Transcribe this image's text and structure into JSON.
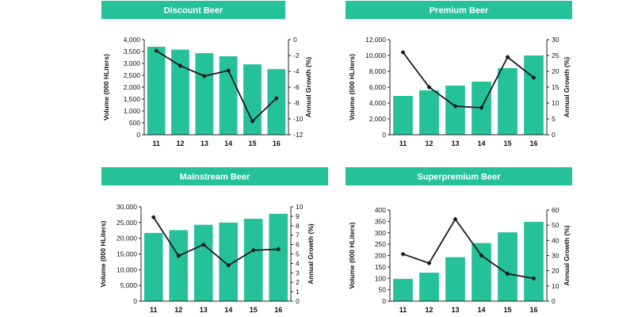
{
  "colors": {
    "bar": "#25c29a",
    "header_bg": "#25c29a",
    "header_text": "#ffffff",
    "line": "#1a1a1a",
    "axis": "#222222",
    "text": "#111111"
  },
  "chart_data": [
    {
      "type": "bar",
      "title": "Discount Beer",
      "categories": [
        "11",
        "12",
        "13",
        "14",
        "15",
        "16"
      ],
      "series": [
        {
          "name": "Volume (000 HLiters)",
          "type": "bar",
          "axis": "left",
          "values": [
            3700,
            3580,
            3430,
            3300,
            2960,
            2760
          ]
        },
        {
          "name": "Annual Growth (%)",
          "type": "line",
          "axis": "right",
          "values": [
            -1.4,
            -3.3,
            -4.6,
            -3.9,
            -10.3,
            -7.4
          ]
        }
      ],
      "ylabel": "Volume (000 HLiters)",
      "y2label": "Annual Growth (%)",
      "ylim": [
        0,
        4000
      ],
      "yticks": [
        0,
        500,
        1000,
        1500,
        2000,
        2500,
        3000,
        3500,
        4000
      ],
      "yticklabels": [
        "0",
        "500",
        "1,000",
        "1,500",
        "2,000",
        "2,500",
        "3,000",
        "3,500",
        "4,000"
      ],
      "y2lim": [
        -12,
        0
      ],
      "y2ticks": [
        0,
        -2,
        -4,
        -6,
        -8,
        -10,
        -12
      ],
      "y2ticklabels": [
        "0",
        "-2",
        "-4",
        "-6",
        "-8",
        "-10",
        "-12"
      ]
    },
    {
      "type": "bar",
      "title": "Premium Beer",
      "categories": [
        "11",
        "12",
        "13",
        "14",
        "15",
        "16"
      ],
      "series": [
        {
          "name": "Volume (000 HLiters)",
          "type": "bar",
          "axis": "left",
          "values": [
            4900,
            5600,
            6200,
            6700,
            8400,
            10000
          ]
        },
        {
          "name": "Annual Growth (%)",
          "type": "line",
          "axis": "right",
          "values": [
            26,
            15,
            9,
            8.5,
            24.5,
            18
          ]
        }
      ],
      "ylabel": "Volume (000 HLiters)",
      "y2label": "Annual Growth (%)",
      "ylim": [
        0,
        12000
      ],
      "yticks": [
        0,
        2000,
        4000,
        6000,
        8000,
        10000,
        12000
      ],
      "yticklabels": [
        "0",
        "2,000",
        "4,000",
        "6,000",
        "8,000",
        "10,000",
        "12,000"
      ],
      "y2lim": [
        0,
        30
      ],
      "y2ticks": [
        0,
        5,
        10,
        15,
        20,
        25,
        30
      ],
      "y2ticklabels": [
        "0",
        "5",
        "10",
        "15",
        "20",
        "25",
        "30"
      ]
    },
    {
      "type": "bar",
      "title": "Mainstream Beer",
      "categories": [
        "11",
        "12",
        "13",
        "14",
        "15",
        "16"
      ],
      "series": [
        {
          "name": "Volume (000 HLiters)",
          "type": "bar",
          "axis": "left",
          "values": [
            21700,
            22600,
            24300,
            25000,
            26200,
            27800
          ]
        },
        {
          "name": "Annual Growth (%)",
          "type": "line",
          "axis": "right",
          "values": [
            8.9,
            4.8,
            6.0,
            3.8,
            5.4,
            5.5
          ]
        }
      ],
      "ylabel": "Volume (000 HLiters)",
      "y2label": "Annual Growth (%)",
      "ylim": [
        0,
        30000
      ],
      "yticks": [
        0,
        5000,
        10000,
        15000,
        20000,
        25000,
        30000
      ],
      "yticklabels": [
        "0",
        "5,000",
        "10,000",
        "15,000",
        "20,000",
        "25,000",
        "30,000"
      ],
      "y2lim": [
        0,
        10
      ],
      "y2ticks": [
        0,
        1,
        2,
        3,
        4,
        5,
        6,
        7,
        8,
        9,
        10
      ],
      "y2ticklabels": [
        "0",
        "1",
        "2",
        "3",
        "4",
        "5",
        "6",
        "7",
        "8",
        "9",
        "10"
      ]
    },
    {
      "type": "bar",
      "title": "Superpremium Beer",
      "categories": [
        "11",
        "12",
        "13",
        "14",
        "15",
        "16"
      ],
      "series": [
        {
          "name": "Volume (000 HLiters)",
          "type": "bar",
          "axis": "left",
          "values": [
            98,
            125,
            193,
            255,
            302,
            348
          ]
        },
        {
          "name": "Annual Growth (%)",
          "type": "line",
          "axis": "right",
          "values": [
            31,
            25,
            54,
            30,
            18,
            15
          ]
        }
      ],
      "ylabel": "Volume (000 HLiters)",
      "y2label": "Annual Growth (%)",
      "ylim": [
        0,
        400
      ],
      "yticks": [
        0,
        50,
        100,
        150,
        200,
        250,
        300,
        350,
        400
      ],
      "yticklabels": [
        "0",
        "50",
        "100",
        "150",
        "200",
        "250",
        "300",
        "350",
        "400"
      ],
      "y2lim": [
        0,
        60
      ],
      "y2ticks": [
        0,
        10,
        20,
        30,
        40,
        50,
        60
      ],
      "y2ticklabels": [
        "0",
        "10",
        "20",
        "30",
        "40",
        "50",
        "60"
      ]
    }
  ]
}
